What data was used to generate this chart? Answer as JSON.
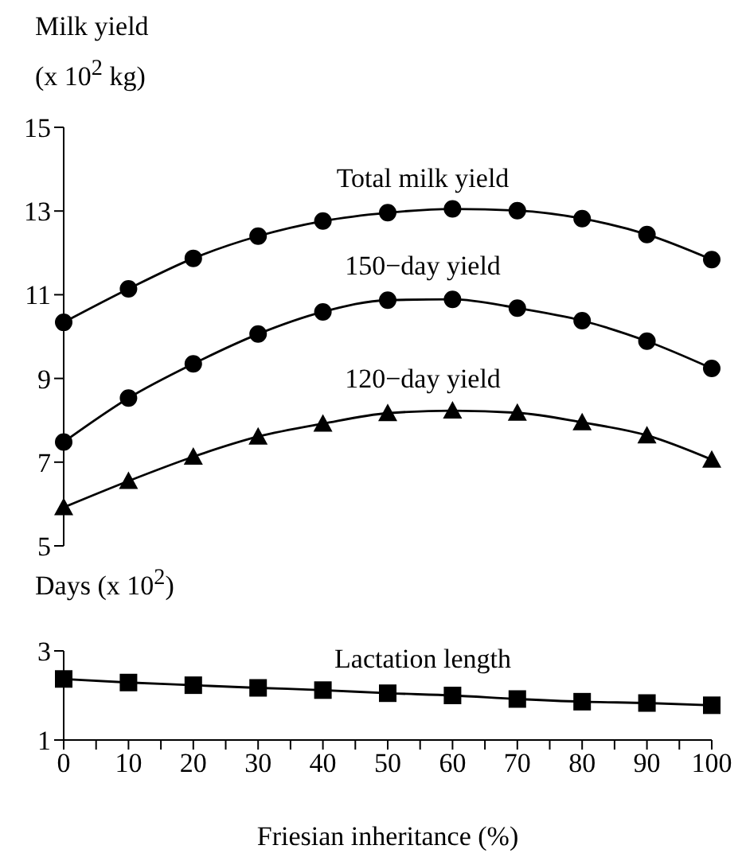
{
  "chart_data": [
    {
      "type": "line",
      "ylabel": "Milk yield (x 10$^{2}$ kg)",
      "xlim": [
        0,
        100
      ],
      "ylim": [
        5,
        15
      ],
      "yticks": [
        5,
        7,
        9,
        11,
        13,
        15
      ],
      "tick_labels": "y",
      "line_style": "solid",
      "x": [
        0,
        10,
        20,
        30,
        40,
        50,
        60,
        70,
        80,
        90,
        100
      ],
      "series": [
        {
          "name": "Total milk yield",
          "color": "#000000",
          "marker": "circle",
          "values": [
            10.34,
            11.14,
            11.87,
            12.4,
            12.76,
            12.96,
            13.05,
            13.01,
            12.82,
            12.44,
            11.84
          ]
        },
        {
          "name": "150−day yield",
          "color": "#000000",
          "marker": "circle",
          "values": [
            7.48,
            8.53,
            9.35,
            10.06,
            10.59,
            10.87,
            10.89,
            10.68,
            10.38,
            9.89,
            9.24
          ]
        },
        {
          "name": "120−day yield",
          "color": "#000000",
          "marker": "triangle",
          "values": [
            5.92,
            6.55,
            7.13,
            7.61,
            7.92,
            8.17,
            8.23,
            8.18,
            7.95,
            7.64,
            7.06
          ]
        }
      ]
    },
    {
      "type": "line",
      "ylabel": "Days (x 10$^{2}$)",
      "xlabel": "Friesian inheritance (%)",
      "xlim": [
        0,
        100
      ],
      "xticks": [
        0,
        {
          "value": 5,
          "label": null
        },
        10,
        {
          "value": 15,
          "label": null
        },
        20,
        {
          "value": 25,
          "label": null
        },
        30,
        {
          "value": 35,
          "label": null
        },
        40,
        {
          "value": 45,
          "label": null
        },
        50,
        {
          "value": 55,
          "label": null
        },
        60,
        {
          "value": 65,
          "label": null
        },
        70,
        {
          "value": 75,
          "label": null
        },
        80,
        {
          "value": 85,
          "label": null
        },
        90,
        {
          "value": 95,
          "label": null
        },
        100
      ],
      "ylim": [
        1,
        3
      ],
      "yticks": [
        1,
        3
      ],
      "line_style": "solid",
      "x": [
        0,
        10,
        20,
        30,
        40,
        50,
        60,
        70,
        80,
        90,
        100
      ],
      "series": [
        {
          "name": "Lactation length",
          "color": "#000000",
          "marker": "square",
          "values": [
            2.37,
            2.29,
            2.23,
            2.17,
            2.12,
            2.05,
            2.0,
            1.92,
            1.86,
            1.83,
            1.78
          ]
        }
      ]
    }
  ]
}
